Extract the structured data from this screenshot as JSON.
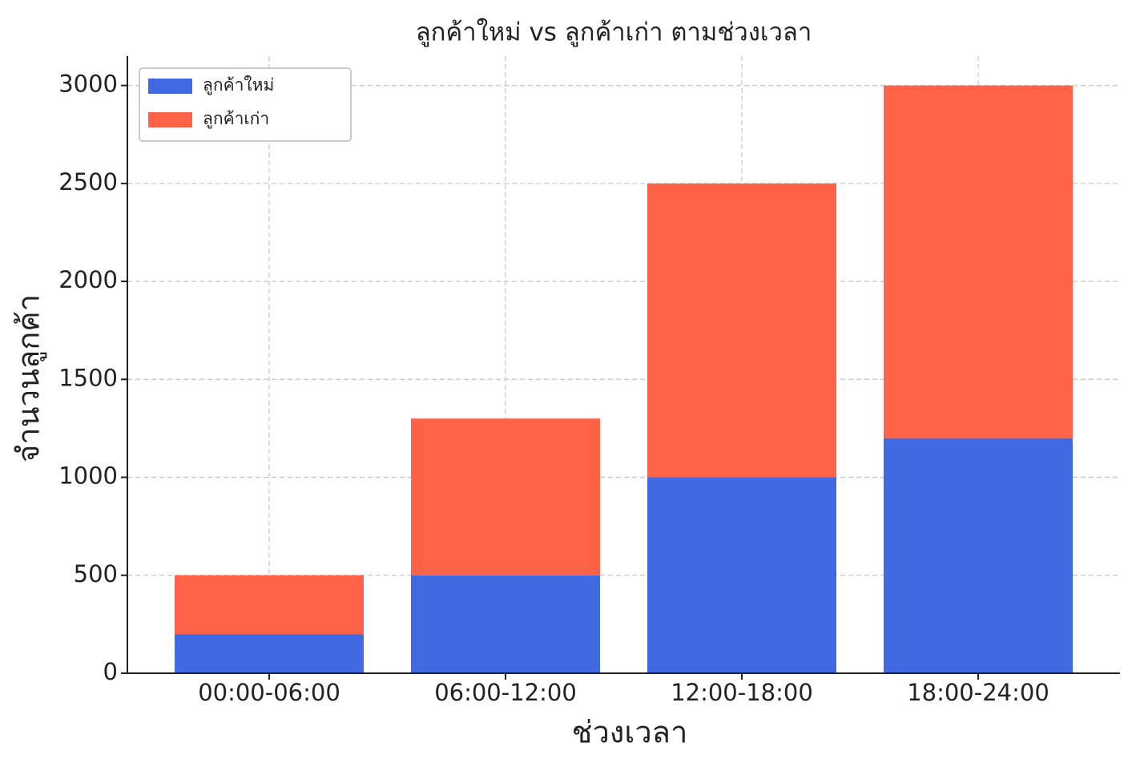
{
  "chart_data": {
    "type": "stacked_bar",
    "title": "ลูกค้าใหม่ vs ลูกค้าเก่า ตามช่วงเวลา",
    "x_label": "ช่วงเวลา",
    "y_label": "จำนวนลูกค้า",
    "categories": [
      "00:00-06:00",
      "06:00-12:00",
      "12:00-18:00",
      "18:00-24:00"
    ],
    "series": [
      {
        "name": "ลูกค้าใหม่",
        "color": "#4169e1",
        "values": [
          200,
          500,
          1000,
          1200
        ]
      },
      {
        "name": "ลูกค้าเก่า",
        "color": "#ff6347",
        "values": [
          300,
          800,
          1500,
          1800
        ]
      }
    ],
    "ylim": [
      0,
      3150
    ],
    "yticks": [
      0,
      500,
      1000,
      1500,
      2000,
      2500,
      3000
    ],
    "grid": true,
    "legend": "upper-left"
  }
}
